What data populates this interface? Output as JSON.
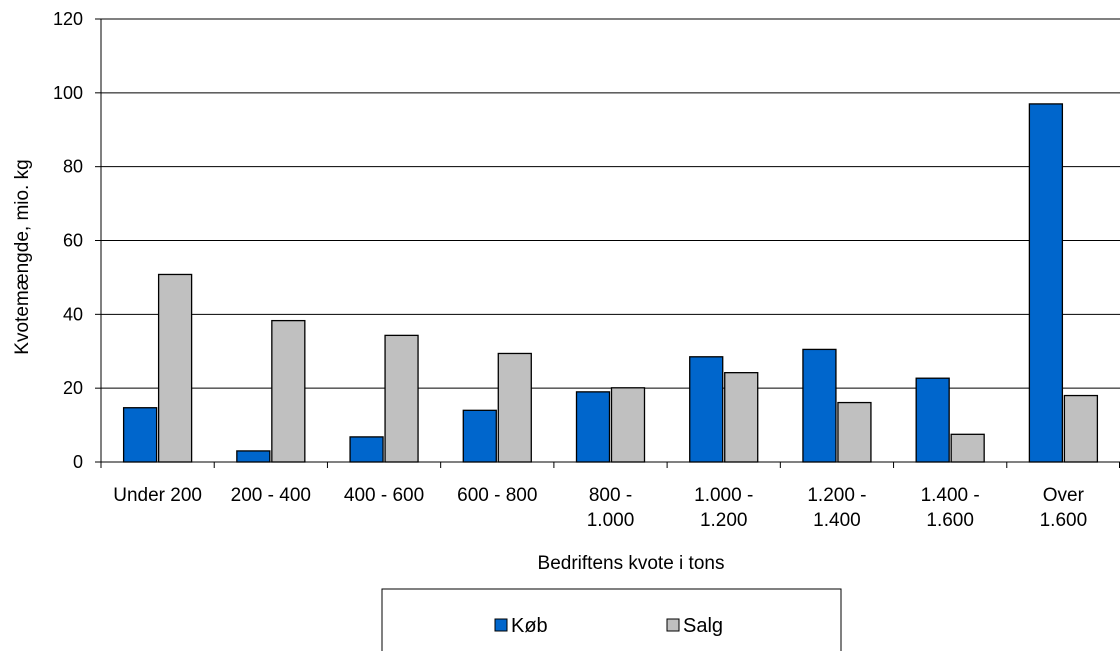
{
  "chart_data": {
    "type": "bar",
    "categories": [
      [
        "Under 200"
      ],
      [
        "200 - 400"
      ],
      [
        "400 - 600"
      ],
      [
        "600 - 800"
      ],
      [
        "800 -",
        "1.000"
      ],
      [
        "1.000 -",
        "1.200"
      ],
      [
        "1.200 -",
        "1.400"
      ],
      [
        "1.400 -",
        "1.600"
      ],
      [
        "Over",
        "1.600"
      ]
    ],
    "series": [
      {
        "name": "Køb",
        "color": "#0066CC",
        "values": [
          14.7,
          3.0,
          6.8,
          14.0,
          19.0,
          28.5,
          30.5,
          22.7,
          97.0
        ]
      },
      {
        "name": "Salg",
        "color": "#C0C0C0",
        "values": [
          50.8,
          38.3,
          34.3,
          29.4,
          20.1,
          24.2,
          16.1,
          7.5,
          18.0
        ]
      }
    ],
    "xlabel": "Bedriftens kvote i tons",
    "ylabel": "Kvotemængde, mio. kg",
    "ylim": [
      0,
      120
    ],
    "yticks": [
      0,
      20,
      40,
      60,
      80,
      100,
      120
    ],
    "grid": true,
    "legend_position": "bottom"
  }
}
